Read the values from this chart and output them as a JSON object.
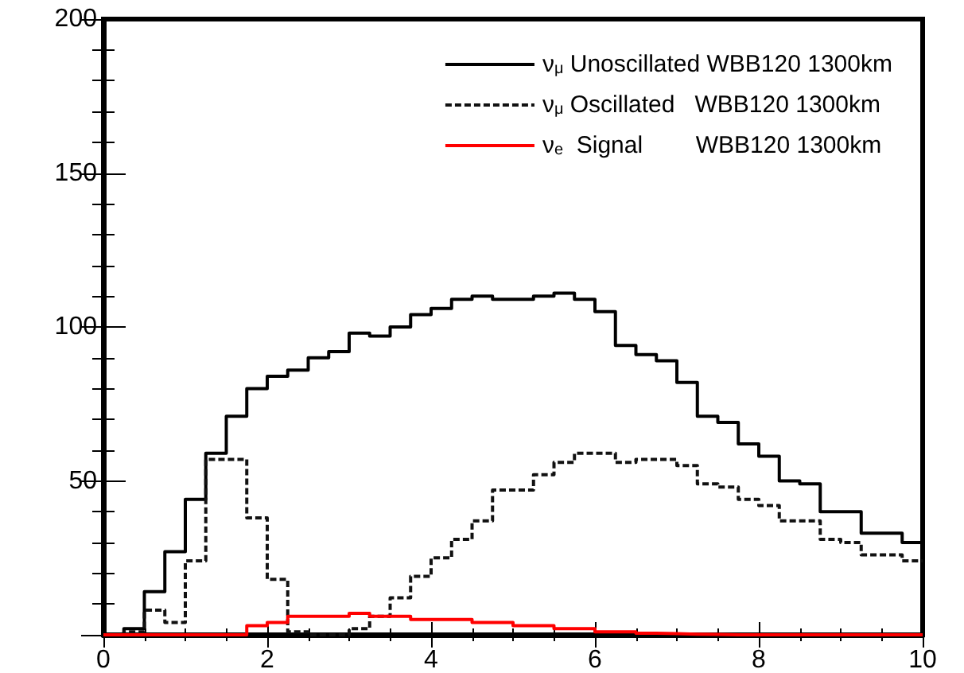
{
  "chart_data": {
    "type": "histogram",
    "bins": [
      0,
      0.25,
      0.5,
      0.75,
      1,
      1.25,
      1.5,
      1.75,
      2,
      2.25,
      2.5,
      2.75,
      3,
      3.25,
      3.5,
      3.75,
      4,
      4.25,
      4.5,
      4.75,
      5,
      5.25,
      5.5,
      5.75,
      6,
      6.25,
      6.5,
      6.75,
      7,
      7.25,
      7.5,
      7.75,
      8,
      8.25,
      8.5,
      8.75,
      9,
      9.25,
      9.5,
      9.75,
      10
    ],
    "series": [
      {
        "name": "ν$_{μ}$ Unoscillated WBB120 1300km",
        "color": "#000000",
        "line_style": "solid",
        "values": [
          0,
          2,
          14,
          27,
          44,
          59,
          71,
          80,
          84,
          86,
          90,
          92,
          98,
          97,
          100,
          104,
          106,
          109,
          110,
          109,
          109,
          110,
          111,
          109,
          105,
          94,
          91,
          89,
          82,
          71,
          69,
          62,
          58,
          50,
          49,
          40,
          40,
          33,
          33,
          30
        ]
      },
      {
        "name": "ν$_{μ}$ Oscillated   WBB120 1300km",
        "color": "#111111",
        "line_style": "dotted",
        "values": [
          0,
          1,
          8,
          4,
          24,
          57,
          57,
          38,
          18,
          1,
          0,
          0,
          2,
          6,
          12,
          19,
          25,
          31,
          37,
          47,
          47,
          52,
          56,
          59,
          59,
          56,
          57,
          57,
          55,
          49,
          48,
          44,
          42,
          37,
          37,
          31,
          30,
          26,
          26,
          24
        ]
      },
      {
        "name": "ν$_{e}$  Signal        WBB120 1300km",
        "color": "#ff0000",
        "line_style": "solid",
        "values": [
          0,
          0,
          0,
          0,
          0,
          0,
          0,
          3,
          4,
          6,
          6,
          6,
          7,
          6,
          6,
          5,
          5,
          5,
          4,
          4,
          3,
          3,
          2,
          2,
          1,
          1,
          0.5,
          0.4,
          0.2,
          0.1,
          0,
          0,
          0,
          0,
          0,
          0,
          0,
          0,
          0,
          0
        ]
      }
    ],
    "xlim": [
      0,
      10
    ],
    "xticks": [
      0,
      2,
      4,
      6,
      8,
      10
    ],
    "ylim": [
      0,
      200
    ],
    "yticks": [
      {
        "value": 0,
        "label": null
      },
      50,
      100,
      150,
      200
    ],
    "legend": "top right",
    "marker": "none",
    "grid": false
  }
}
